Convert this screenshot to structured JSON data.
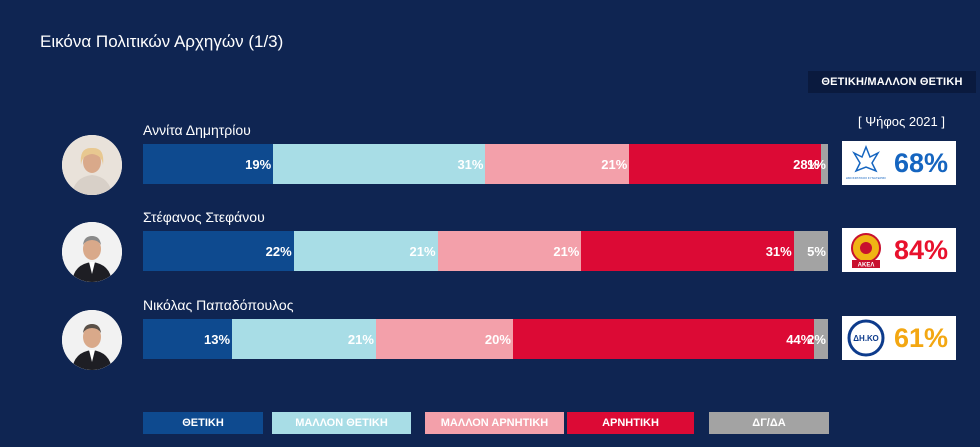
{
  "title": "Εικόνα Πολιτικών Αρχηγών (1/3)",
  "header_label": "ΘΕΤΙΚΗ/ΜΑΛΛΟΝ ΘΕΤΙΚΗ",
  "vote_note": "[ Ψήφος 2021 ]",
  "colors": {
    "positive": "#0e4a8f",
    "rather_positive": "#a8dde6",
    "rather_negative": "#f3a0aa",
    "negative": "#dc0a35",
    "dk_na": "#a3a3a3",
    "disy": "#1565c0",
    "akel": "#e8112d",
    "diko": "#f3a712"
  },
  "chart_data": {
    "type": "bar",
    "orientation": "horizontal",
    "stacked": true,
    "title": "Εικόνα Πολιτικών Αρχηγών (1/3)",
    "categories": [
      "Αννίτα Δημητρίου",
      "Στέφανος Στεφάνου",
      "Νικόλας Παπαδόπουλος"
    ],
    "series": [
      {
        "name": "ΘΕΤΙΚΗ",
        "values": [
          19,
          22,
          13
        ],
        "labels": [
          "19%",
          "22%",
          "13%"
        ]
      },
      {
        "name": "ΜΑΛΛΟΝ ΘΕΤΙΚΗ",
        "values": [
          31,
          21,
          21
        ],
        "labels": [
          "31%",
          "21%",
          "21%"
        ]
      },
      {
        "name": "ΜΑΛΛΟΝ ΑΡΝΗΤΙΚΗ",
        "values": [
          21,
          21,
          20
        ],
        "labels": [
          "21%",
          "21%",
          "20%"
        ]
      },
      {
        "name": "ΑΡΝΗΤΙΚΗ",
        "values": [
          28,
          31,
          44
        ],
        "labels": [
          "28%",
          "31%",
          "44%"
        ]
      },
      {
        "name": "ΔΓ/ΔΑ",
        "values": [
          1,
          5,
          2
        ],
        "labels": [
          "1%",
          "5%",
          "2%"
        ]
      }
    ],
    "positive_among_party_voters": [
      {
        "party": "ΔΗΣΥ",
        "party_logo_text": "ΔΗΜΟΚΡΑΤΙΚΟΣ ΣΥΝΑΓΕΡΜΟΣ",
        "value": 68,
        "label": "68%"
      },
      {
        "party": "ΑΚΕΛ",
        "party_logo_text": "ΑΚΕΛ",
        "value": 84,
        "label": "84%"
      },
      {
        "party": "ΔΗΚΟ",
        "party_logo_text": "ΔΗ.ΚΟ",
        "value": 61,
        "label": "61%"
      }
    ],
    "legend": [
      "ΘΕΤΙΚΗ",
      "ΜΑΛΛΟΝ ΘΕΤΙΚΗ",
      "ΜΑΛΛΟΝ ΑΡΝΗΤΙΚΗ",
      "ΑΡΝΗΤΙΚΗ",
      "ΔΓ/ΔΑ"
    ],
    "xlim": [
      0,
      100
    ]
  }
}
